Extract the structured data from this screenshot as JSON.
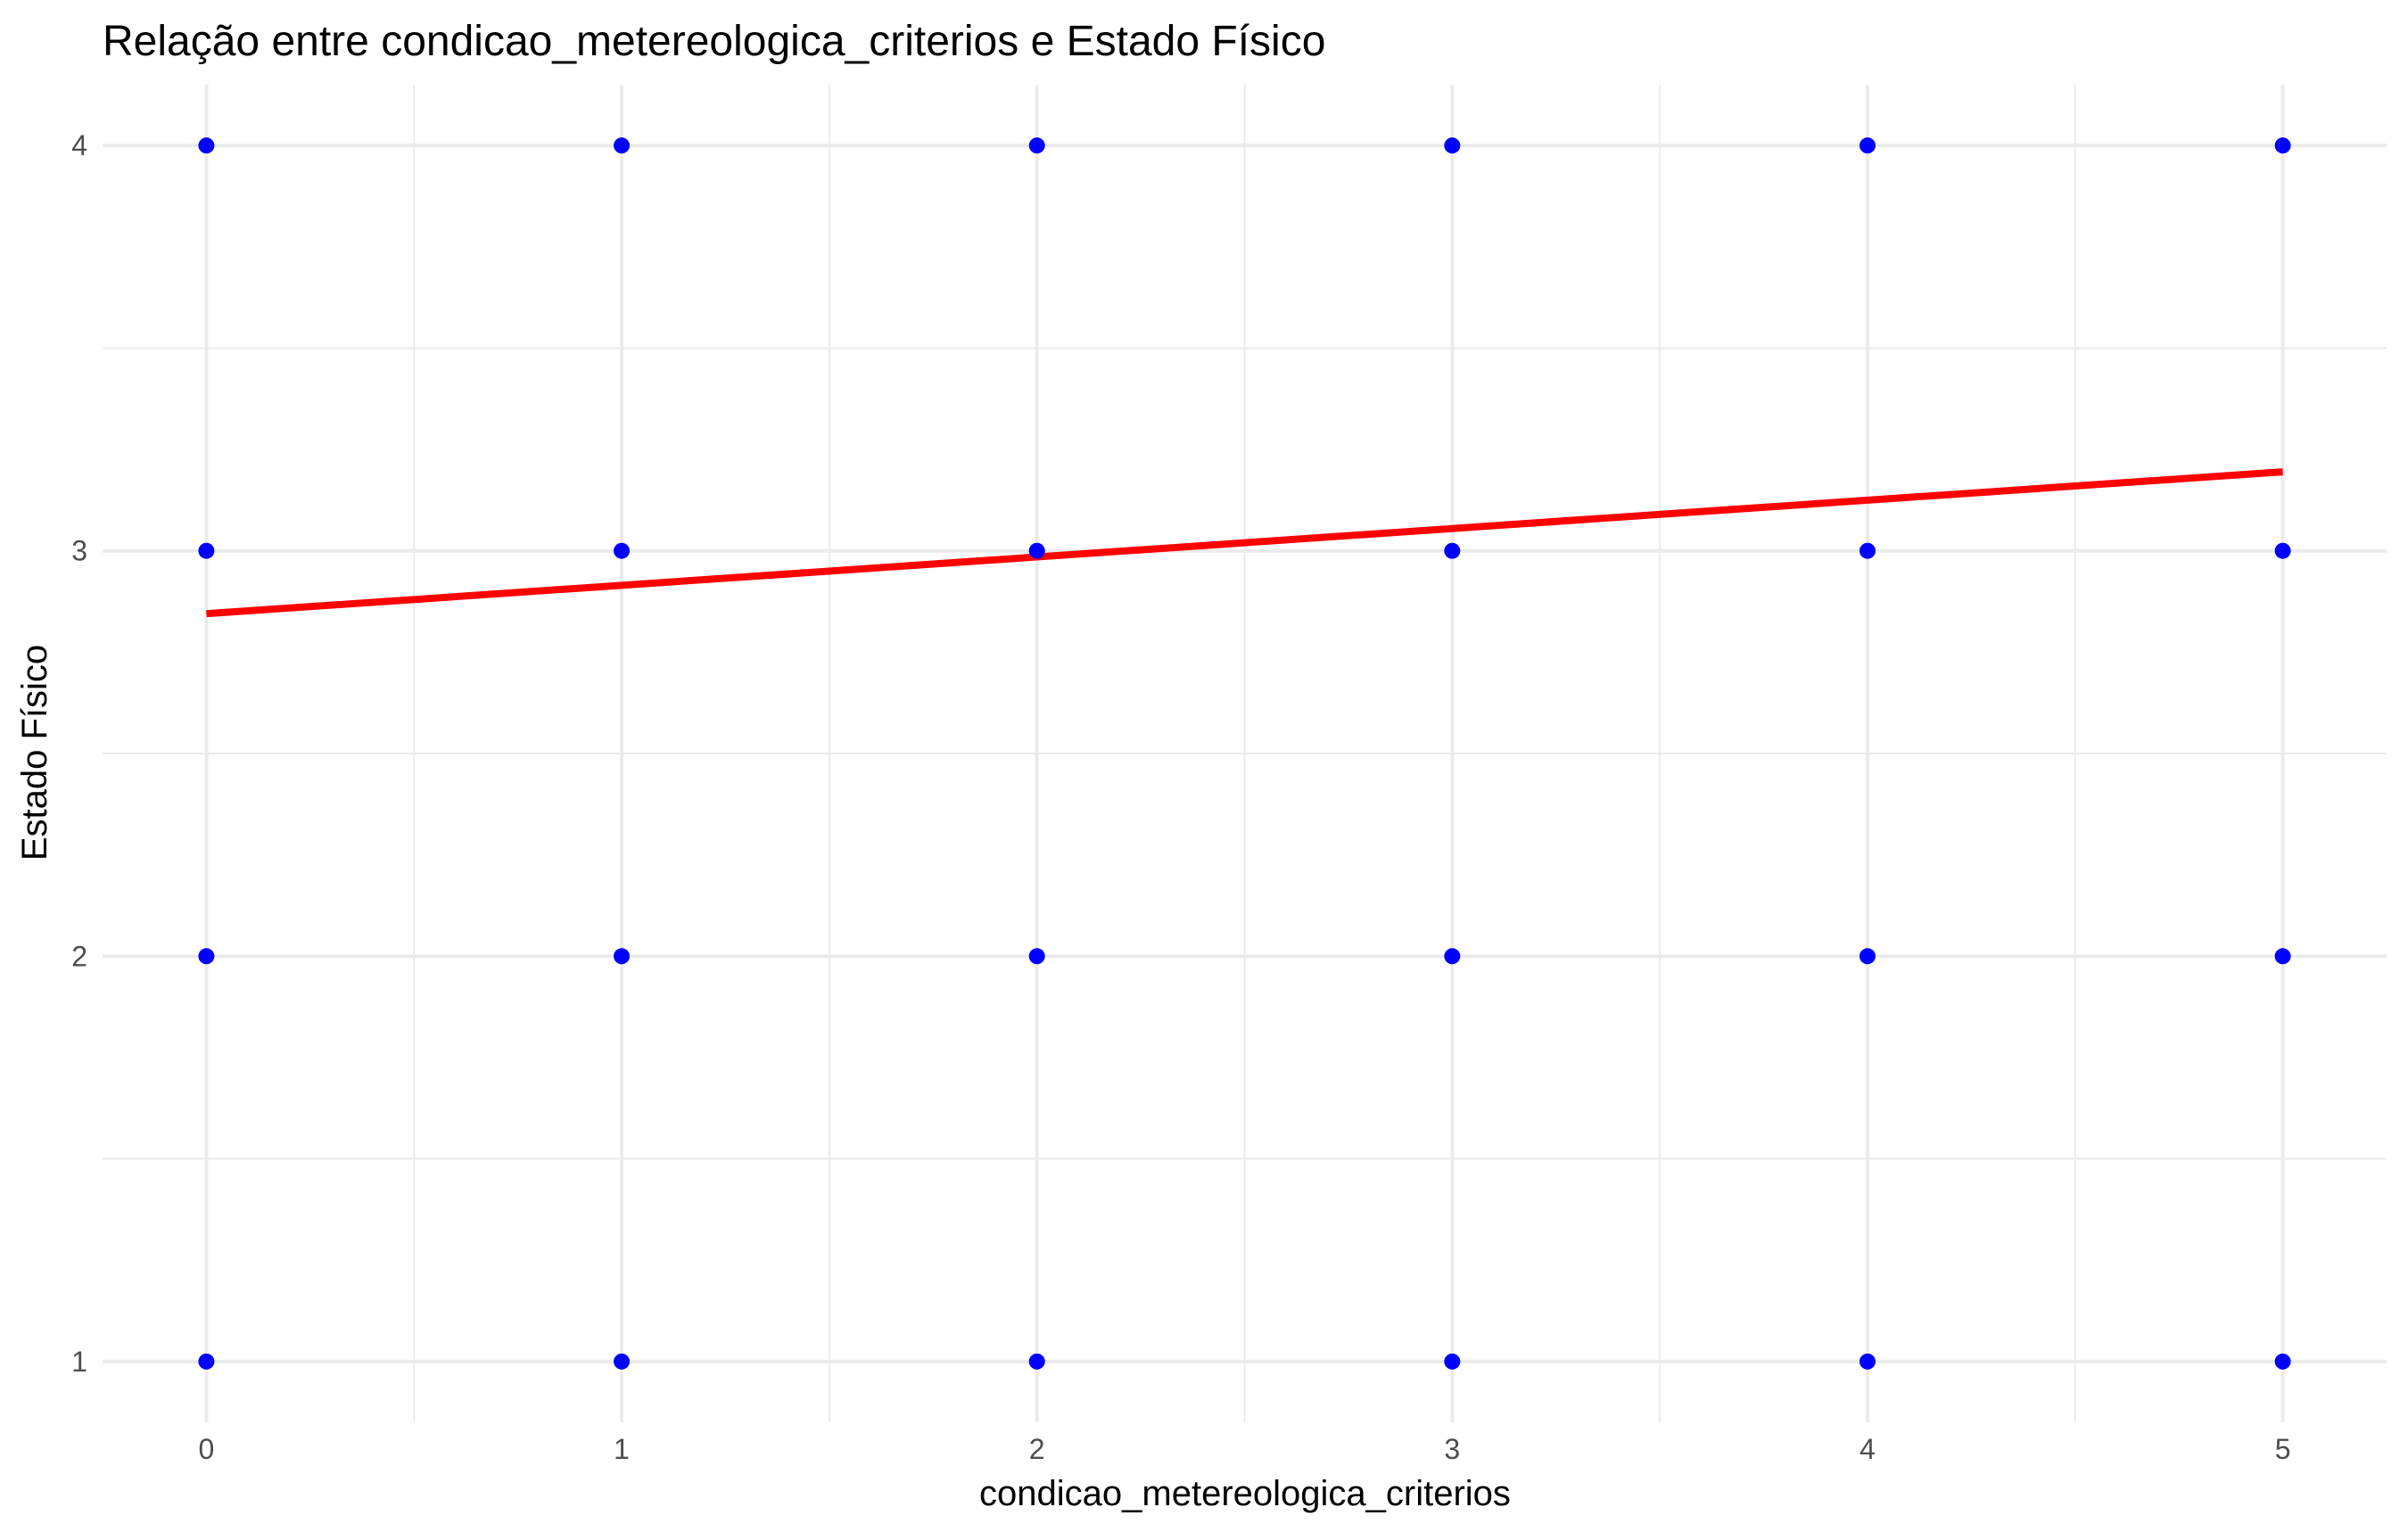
{
  "chart_data": {
    "type": "scatter",
    "title": "Relação entre condicao_metereologica_criterios e Estado Físico",
    "xlabel": "condicao_metereologica_criterios",
    "ylabel": "Estado Físico",
    "xlim": [
      -0.25,
      5.25
    ],
    "ylim": [
      0.85,
      4.15
    ],
    "x_ticks": [
      0,
      1,
      2,
      3,
      4,
      5
    ],
    "y_ticks": [
      1,
      2,
      3,
      4
    ],
    "x_minor_ticks": [
      0.5,
      1.5,
      2.5,
      3.5,
      4.5
    ],
    "y_minor_ticks": [
      1.5,
      2.5,
      3.5
    ],
    "grid": true,
    "series": [
      {
        "type": "scatter",
        "color": "#0000ff",
        "points": [
          {
            "x": 0,
            "y": 1
          },
          {
            "x": 0,
            "y": 2
          },
          {
            "x": 0,
            "y": 3
          },
          {
            "x": 0,
            "y": 4
          },
          {
            "x": 1,
            "y": 1
          },
          {
            "x": 1,
            "y": 2
          },
          {
            "x": 1,
            "y": 3
          },
          {
            "x": 1,
            "y": 4
          },
          {
            "x": 2,
            "y": 1
          },
          {
            "x": 2,
            "y": 2
          },
          {
            "x": 2,
            "y": 3
          },
          {
            "x": 2,
            "y": 4
          },
          {
            "x": 3,
            "y": 1
          },
          {
            "x": 3,
            "y": 2
          },
          {
            "x": 3,
            "y": 3
          },
          {
            "x": 3,
            "y": 4
          },
          {
            "x": 4,
            "y": 1
          },
          {
            "x": 4,
            "y": 2
          },
          {
            "x": 4,
            "y": 3
          },
          {
            "x": 4,
            "y": 4
          },
          {
            "x": 5,
            "y": 1
          },
          {
            "x": 5,
            "y": 2
          },
          {
            "x": 5,
            "y": 3
          },
          {
            "x": 5,
            "y": 4
          }
        ]
      },
      {
        "type": "line",
        "color": "#ff0000",
        "points": [
          {
            "x": 0,
            "y": 2.845
          },
          {
            "x": 5,
            "y": 3.195
          }
        ]
      }
    ]
  }
}
